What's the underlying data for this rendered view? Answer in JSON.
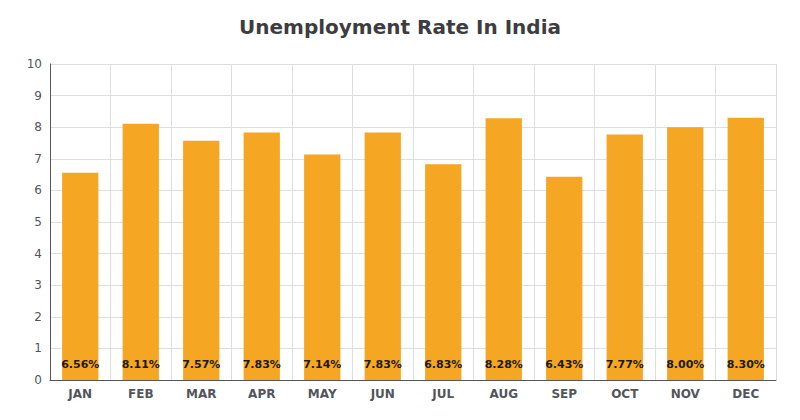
{
  "chart_data": {
    "type": "bar",
    "title": "Unemployment Rate In India",
    "categories": [
      "JAN",
      "FEB",
      "MAR",
      "APR",
      "MAY",
      "JUN",
      "JUL",
      "AUG",
      "SEP",
      "OCT",
      "NOV",
      "DEC"
    ],
    "values": [
      6.56,
      8.11,
      7.57,
      7.83,
      7.14,
      7.83,
      6.83,
      8.28,
      6.43,
      7.77,
      8.0,
      8.3
    ],
    "value_labels": [
      "6.56%",
      "8.11%",
      "7.57%",
      "7.83%",
      "7.14%",
      "7.83%",
      "6.83%",
      "8.28%",
      "6.43%",
      "7.77%",
      "8.00%",
      "8.30%"
    ],
    "data_labels": true,
    "color": "#F5A623",
    "ylim": [
      0,
      10
    ],
    "yticks": [
      0,
      1,
      2,
      3,
      4,
      5,
      6,
      7,
      8,
      9,
      10
    ],
    "grid": true
  }
}
